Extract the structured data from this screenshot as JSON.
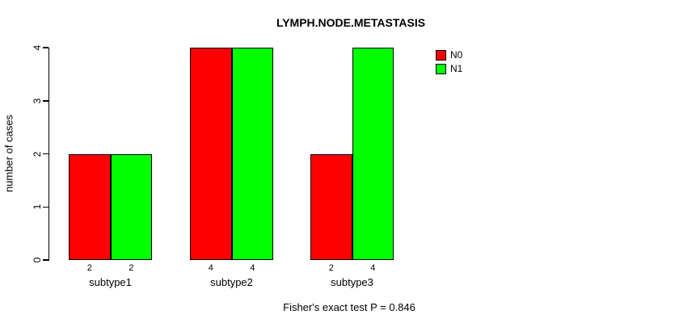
{
  "chart_data": {
    "type": "bar",
    "title": "LYMPH.NODE.METASTASIS",
    "categories": [
      "subtype1",
      "subtype2",
      "subtype3"
    ],
    "series": [
      {
        "name": "N0",
        "color": "#ff0000",
        "values": [
          2,
          4,
          2
        ]
      },
      {
        "name": "N1",
        "color": "#00ff00",
        "values": [
          2,
          4,
          4
        ]
      }
    ],
    "xlabel": "",
    "ylabel": "number of cases",
    "ylim": [
      0,
      4
    ],
    "yticks": [
      0,
      1,
      2,
      3,
      4
    ],
    "grid": false,
    "legend_position": "top-right",
    "bar_border_color": "#000000",
    "annotation": "Fisher's exact test P = 0.846"
  }
}
